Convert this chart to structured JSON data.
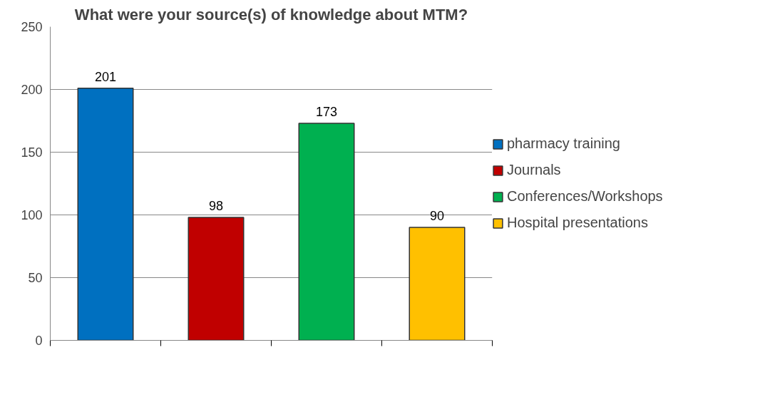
{
  "chart_data": {
    "type": "bar",
    "title": "What were your source(s) of knowledge about MTM?",
    "categories": [
      null,
      null,
      null,
      null
    ],
    "series": [
      {
        "name": "pharmacy training",
        "color": "#0070c0",
        "values": [
          201,
          null,
          null,
          null
        ]
      },
      {
        "name": "Journals",
        "color": "#c00000",
        "values": [
          null,
          98,
          null,
          null
        ]
      },
      {
        "name": "Conferences/Workshops",
        "color": "#00b050",
        "values": [
          null,
          null,
          173,
          null
        ]
      },
      {
        "name": "Hospital presentations",
        "color": "#ffc000",
        "values": [
          null,
          null,
          null,
          90
        ]
      }
    ],
    "ylim": [
      0,
      250
    ],
    "yticks": [
      0,
      50,
      100,
      150,
      200,
      250
    ],
    "grid": "y",
    "legend": "right",
    "data_labels": true
  }
}
